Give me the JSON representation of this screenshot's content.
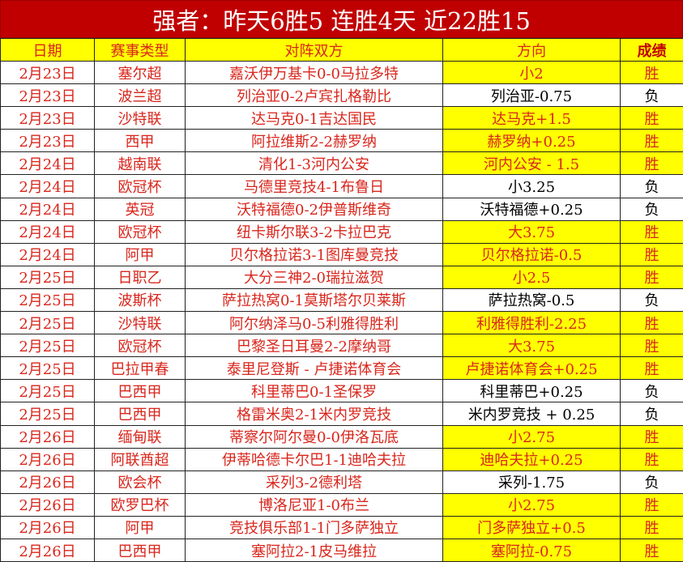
{
  "title": "强者：昨天6胜5 连胜4天 近22胜15",
  "headers": {
    "date": "日期",
    "type": "赛事类型",
    "match": "对阵双方",
    "direction": "方向",
    "result": "成绩"
  },
  "colors": {
    "title_bg": "#c00000",
    "highlight": "#ffff00",
    "text_red": "#d8261c"
  },
  "rows": [
    {
      "date": "2月23日",
      "type": "塞尔超",
      "match": "嘉沃伊万基卡0-0马拉多特",
      "direction": "小2",
      "result": "胜"
    },
    {
      "date": "2月23日",
      "type": "波兰超",
      "match": "列治亚0-2卢宾扎格勒比",
      "direction": "列治亚-0.75",
      "result": "负"
    },
    {
      "date": "2月23日",
      "type": "沙特联",
      "match": "达马克0-1吉达国民",
      "direction": "达马克+1.5",
      "result": "胜"
    },
    {
      "date": "2月23日",
      "type": "西甲",
      "match": "阿拉维斯2-2赫罗纳",
      "direction": "赫罗纳+0.25",
      "result": "胜"
    },
    {
      "date": "2月24日",
      "type": "越南联",
      "match": "清化1-3河内公安",
      "direction": "河内公安 - 1.5",
      "result": "胜"
    },
    {
      "date": "2月24日",
      "type": "欧冠杯",
      "match": "马德里竞技4-1布鲁日",
      "direction": "小3.25",
      "result": "负"
    },
    {
      "date": "2月24日",
      "type": "英冠",
      "match": "沃特福德0-2伊普斯维奇",
      "direction": "沃特福德+0.25",
      "result": "负"
    },
    {
      "date": "2月24日",
      "type": "欧冠杯",
      "match": "纽卡斯尔联3-2卡拉巴克",
      "direction": "大3.75",
      "result": "胜"
    },
    {
      "date": "2月24日",
      "type": "阿甲",
      "match": "贝尔格拉诺3-1图库曼竞技",
      "direction": "贝尔格拉诺-0.5",
      "result": "胜"
    },
    {
      "date": "2月25日",
      "type": "日职乙",
      "match": "大分三神2-0瑞拉滋贺",
      "direction": "小2.5",
      "result": "胜"
    },
    {
      "date": "2月25日",
      "type": "波斯杯",
      "match": "萨拉热窝0-1莫斯塔尔贝莱斯",
      "direction": "萨拉热窝-0.5",
      "result": "负"
    },
    {
      "date": "2月25日",
      "type": "沙特联",
      "match": "阿尔纳泽马0-5利雅得胜利",
      "direction": "利雅得胜利-2.25",
      "result": "胜"
    },
    {
      "date": "2月25日",
      "type": "欧冠杯",
      "match": "巴黎圣日耳曼2-2摩纳哥",
      "direction": "大3.75",
      "result": "胜"
    },
    {
      "date": "2月25日",
      "type": "巴拉甲春",
      "match": "泰里尼登斯 - 卢捷诺体育会",
      "direction": "卢捷诺体育会+0.25",
      "result": "胜"
    },
    {
      "date": "2月25日",
      "type": "巴西甲",
      "match": "科里蒂巴0-1圣保罗",
      "direction": "科里蒂巴+0.25",
      "result": "负"
    },
    {
      "date": "2月25日",
      "type": "巴西甲",
      "match": "格雷米奥2-1米内罗竞技",
      "direction": "米内罗竞技 + 0.25",
      "result": "负"
    },
    {
      "date": "2月26日",
      "type": "缅甸联",
      "match": "蒂察尔阿尔曼0-0伊洛瓦底",
      "direction": "小2.75",
      "result": "胜"
    },
    {
      "date": "2月26日",
      "type": "阿联酋超",
      "match": "伊蒂哈德卡尔巴1-1迪哈夫拉",
      "direction": "迪哈夫拉+0.25",
      "result": "胜"
    },
    {
      "date": "2月26日",
      "type": "欧会杯",
      "match": "采列3-2德利塔",
      "direction": "采列-1.75",
      "result": "负"
    },
    {
      "date": "2月26日",
      "type": "欧罗巴杯",
      "match": "博洛尼亚1-0布兰",
      "direction": "小2.75",
      "result": "胜"
    },
    {
      "date": "2月26日",
      "type": "阿甲",
      "match": "竞技俱乐部1-1门多萨独立",
      "direction": "门多萨独立+0.5",
      "result": "胜"
    },
    {
      "date": "2月26日",
      "type": "巴西甲",
      "match": "塞阿拉2-1皮马维拉",
      "direction": "塞阿拉-0.75",
      "result": "胜"
    }
  ]
}
